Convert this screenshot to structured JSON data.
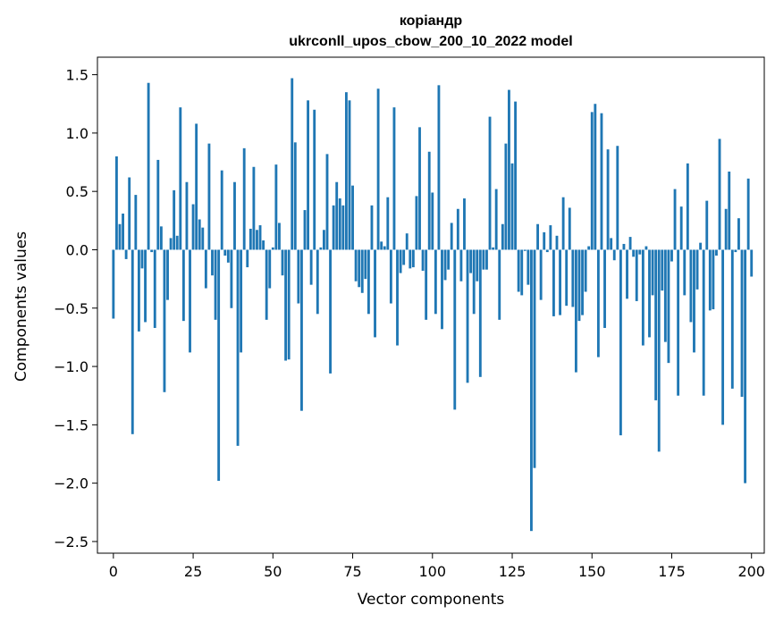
{
  "chart_data": {
    "type": "bar",
    "title": "коріандр",
    "subtitle": "ukrconll_upos_cbow_200_10_2022 model",
    "xlabel": "Vector components",
    "ylabel": "Components values",
    "xlim": [
      -5,
      204
    ],
    "ylim": [
      -2.6,
      1.65
    ],
    "xticks": [
      0,
      25,
      50,
      75,
      100,
      125,
      150,
      175,
      200
    ],
    "yticks": [
      -2.5,
      -2.0,
      -1.5,
      -1.0,
      -0.5,
      0.0,
      0.5,
      1.0,
      1.5
    ],
    "bar_color": "#1f77b4",
    "grid": false,
    "values": [
      -0.59,
      0.8,
      0.22,
      0.31,
      -0.08,
      0.62,
      -1.58,
      0.47,
      -0.7,
      -0.16,
      -0.62,
      1.43,
      -0.02,
      -0.67,
      0.77,
      0.2,
      -1.22,
      -0.43,
      0.1,
      0.51,
      0.12,
      1.22,
      -0.61,
      0.58,
      -0.88,
      0.39,
      1.08,
      0.26,
      0.19,
      -0.33,
      0.91,
      -0.22,
      -0.6,
      -1.98,
      0.68,
      -0.05,
      -0.11,
      -0.5,
      0.58,
      -1.68,
      -0.88,
      0.87,
      -0.15,
      0.18,
      0.71,
      0.17,
      0.21,
      0.08,
      -0.6,
      -0.33,
      0.02,
      0.73,
      0.23,
      -0.22,
      -0.95,
      -0.94,
      1.47,
      0.92,
      -0.46,
      -1.38,
      0.34,
      1.28,
      -0.3,
      1.2,
      -0.55,
      0.02,
      0.17,
      0.82,
      -1.06,
      0.38,
      0.58,
      0.44,
      0.38,
      1.35,
      1.28,
      0.55,
      -0.27,
      -0.32,
      -0.37,
      -0.25,
      -0.55,
      0.38,
      -0.75,
      1.38,
      0.07,
      0.03,
      0.45,
      -0.46,
      1.22,
      -0.82,
      -0.2,
      -0.13,
      0.14,
      -0.16,
      -0.15,
      0.46,
      1.05,
      -0.18,
      -0.6,
      0.84,
      0.49,
      -0.55,
      1.41,
      -0.68,
      -0.26,
      -0.17,
      0.23,
      -1.37,
      0.35,
      -0.27,
      0.44,
      -1.14,
      -0.2,
      -0.55,
      -0.27,
      -1.09,
      -0.17,
      -0.17,
      1.14,
      0.02,
      0.52,
      -0.6,
      0.22,
      0.91,
      1.37,
      0.74,
      1.27,
      -0.36,
      -0.39,
      -0.01,
      -0.3,
      -2.41,
      -1.87,
      0.22,
      -0.43,
      0.15,
      -0.02,
      0.21,
      -0.57,
      0.12,
      -0.56,
      0.45,
      -0.48,
      0.36,
      -0.49,
      -1.05,
      -0.61,
      -0.56,
      -0.36,
      0.03,
      1.18,
      1.25,
      -0.92,
      1.17,
      -0.67,
      0.86,
      0.1,
      -0.09,
      0.89,
      -1.59,
      0.05,
      -0.42,
      0.11,
      -0.06,
      -0.44,
      -0.04,
      -0.82,
      0.03,
      -0.75,
      -0.39,
      -1.29,
      -1.73,
      -0.35,
      -0.79,
      -0.97,
      -0.1,
      0.52,
      -1.25,
      0.37,
      -0.39,
      0.74,
      -0.62,
      -0.88,
      -0.34,
      0.06,
      -1.25,
      0.42,
      -0.52,
      -0.51,
      -0.05,
      0.95,
      -1.5,
      0.35,
      0.67,
      -1.19,
      -0.02,
      0.27,
      -1.26,
      -2.0,
      0.61,
      -0.23
    ]
  }
}
